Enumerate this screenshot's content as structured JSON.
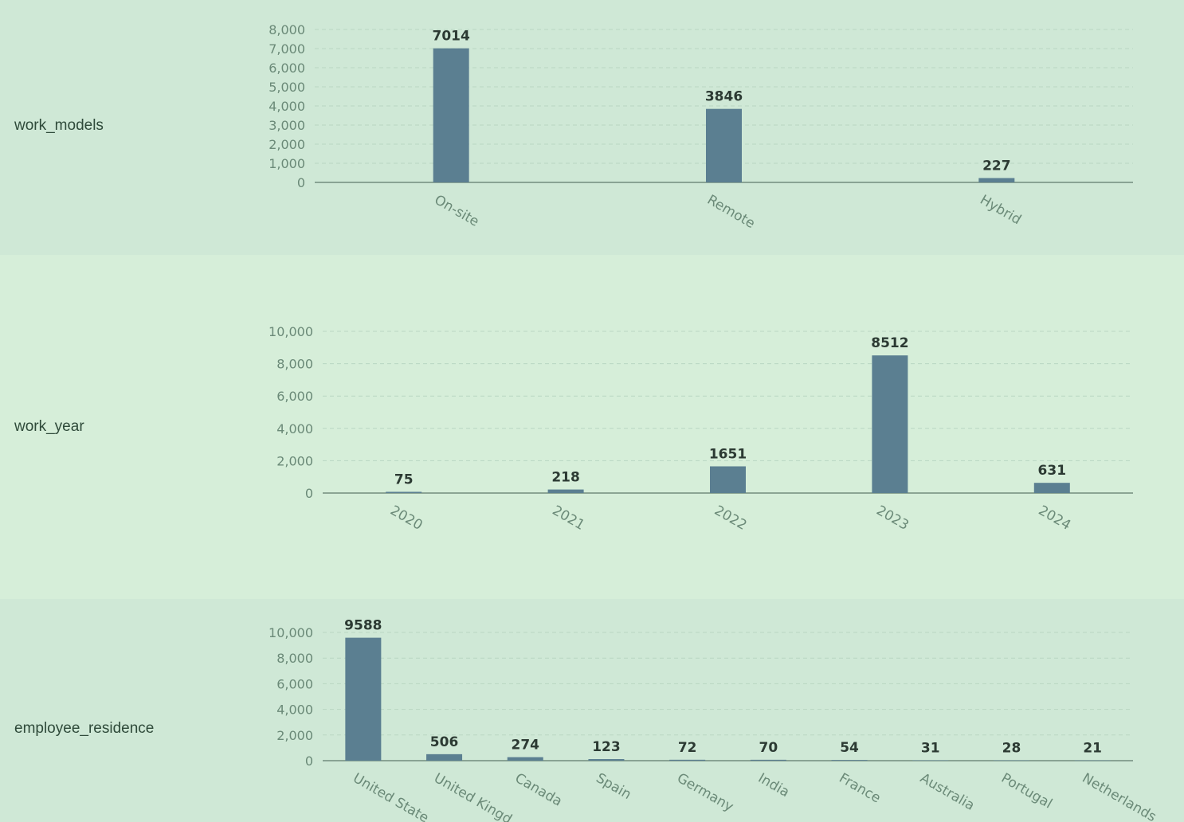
{
  "colors": {
    "bar": "#5b7f91",
    "axis": "#5f7a6c",
    "grid": "#b9d6c2",
    "row_bg": [
      "#cfe8d6",
      "#d6eed9",
      "#cfe8d6"
    ]
  },
  "chart_data": [
    {
      "type": "bar",
      "title": "work_models",
      "categories": [
        "On-site",
        "Remote",
        "Hybrid"
      ],
      "values": [
        7014,
        3846,
        227
      ],
      "yticks": [
        0,
        1000,
        2000,
        3000,
        4000,
        5000,
        6000,
        7000,
        8000
      ],
      "ylim": [
        0,
        8000
      ],
      "grid": true
    },
    {
      "type": "bar",
      "title": "work_year",
      "categories": [
        "2020",
        "2021",
        "2022",
        "2023",
        "2024"
      ],
      "values": [
        75,
        218,
        1651,
        8512,
        631
      ],
      "yticks": [
        0,
        2000,
        4000,
        6000,
        8000,
        10000
      ],
      "ylim": [
        0,
        10000
      ],
      "grid": true
    },
    {
      "type": "bar",
      "title": "employee_residence",
      "categories": [
        "United State",
        "United Kingd",
        "Canada",
        "Spain",
        "Germany",
        "India",
        "France",
        "Australia",
        "Portugal",
        "Netherlands"
      ],
      "values": [
        9588,
        506,
        274,
        123,
        72,
        70,
        54,
        31,
        28,
        21
      ],
      "yticks": [
        0,
        2000,
        4000,
        6000,
        8000,
        10000
      ],
      "ylim": [
        0,
        10000
      ],
      "grid": true
    }
  ]
}
